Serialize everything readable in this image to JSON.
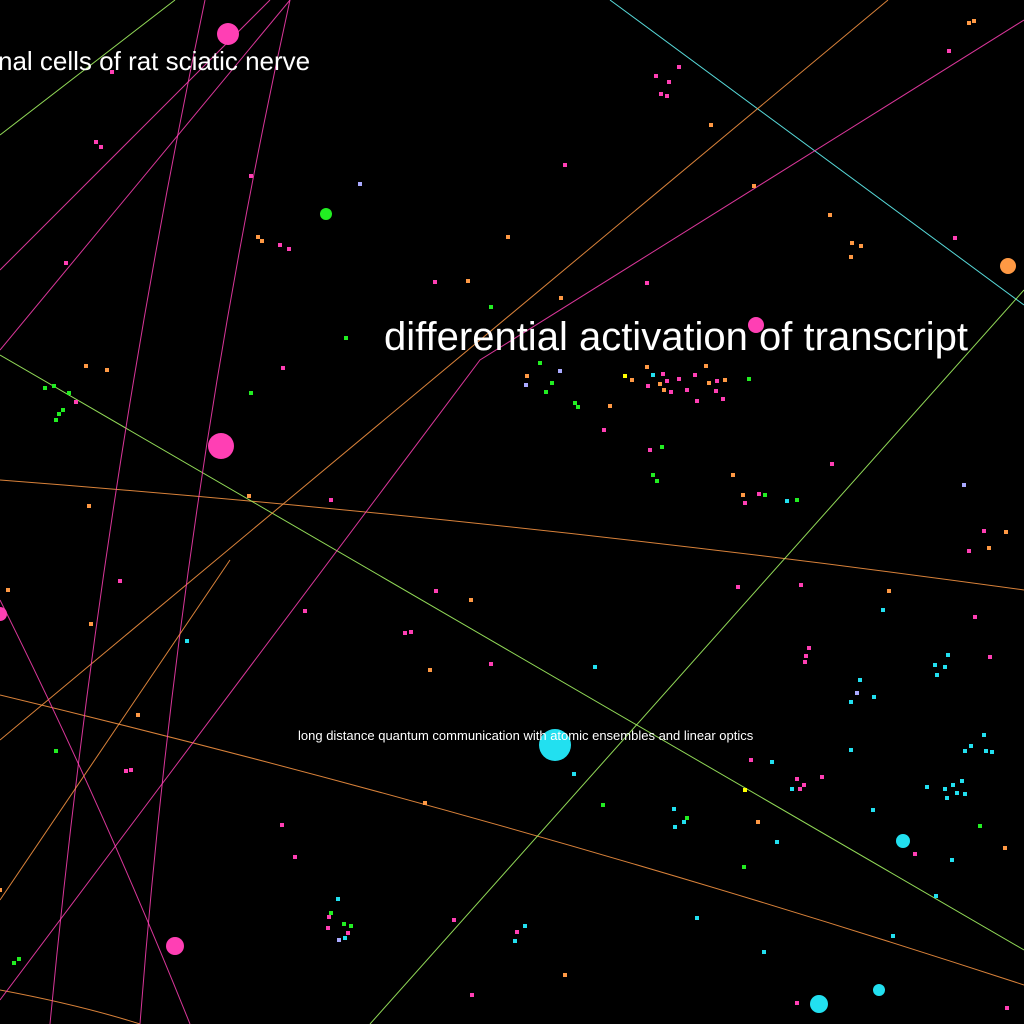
{
  "labels": {
    "top_left": "nal cells of rat sciatic nerve",
    "center": "differential activation of transcript",
    "bottom": "long distance quantum communication with atomic ensembles and linear optics"
  },
  "colors": {
    "background": "#000000",
    "label": "#ffffff",
    "pink": "#ff3fb4",
    "orange": "#ff9944",
    "green": "#22ee22",
    "cyan": "#22e0f0",
    "lavender": "#aaaaff",
    "yellow": "#ffff00",
    "light_green": "#aaff66",
    "light_cyan": "#66ffff"
  }
}
